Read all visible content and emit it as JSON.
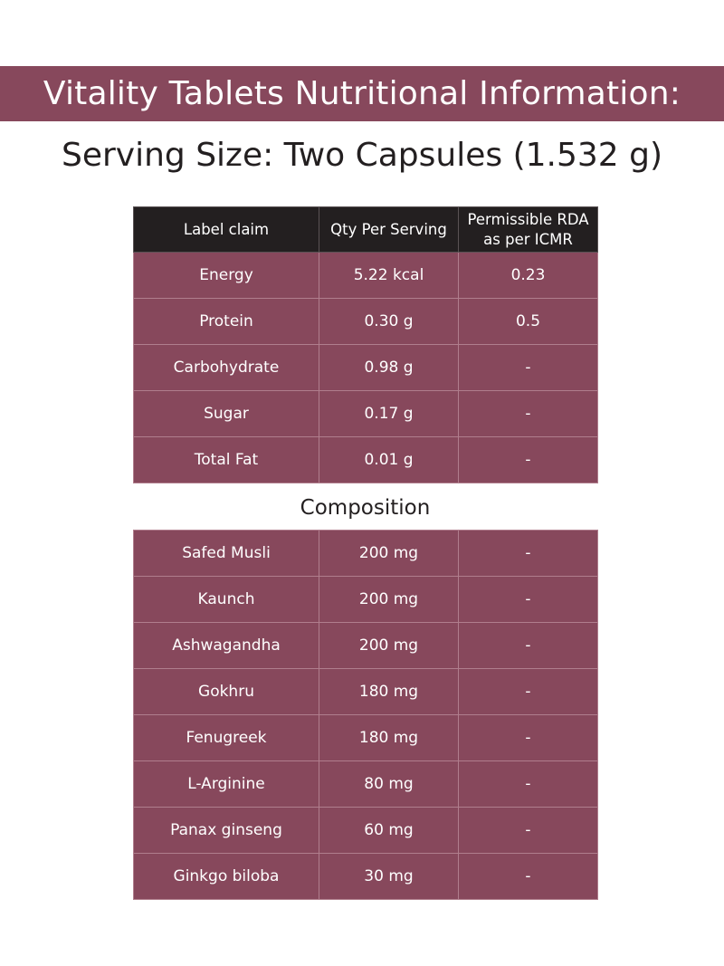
{
  "header": {
    "title": "Vitality Tablets Nutritional Information:",
    "serving_size": "Serving Size: Two Capsules (1.532 g)"
  },
  "nutrition_table": {
    "columns": [
      "Label claim",
      "Qty Per Serving",
      "Permissible RDA as per ICMR"
    ],
    "rows": [
      {
        "claim": "Energy",
        "qty": "5.22 kcal",
        "rda": "0.23"
      },
      {
        "claim": "Protein",
        "qty": "0.30 g",
        "rda": "0.5"
      },
      {
        "claim": "Carbohydrate",
        "qty": "0.98 g",
        "rda": "-"
      },
      {
        "claim": "Sugar",
        "qty": "0.17 g",
        "rda": "-"
      },
      {
        "claim": "Total Fat",
        "qty": "0.01 g",
        "rda": "-"
      }
    ]
  },
  "composition": {
    "title": "Composition",
    "rows": [
      {
        "claim": "Safed Musli",
        "qty": "200 mg",
        "rda": "-"
      },
      {
        "claim": "Kaunch",
        "qty": "200 mg",
        "rda": "-"
      },
      {
        "claim": "Ashwagandha",
        "qty": "200 mg",
        "rda": "-"
      },
      {
        "claim": "Gokhru",
        "qty": "180 mg",
        "rda": "-"
      },
      {
        "claim": "Fenugreek",
        "qty": "180 mg",
        "rda": "-"
      },
      {
        "claim": "L-Arginine",
        "qty": "80 mg",
        "rda": "-"
      },
      {
        "claim": "Panax ginseng",
        "qty": "60 mg",
        "rda": "-"
      },
      {
        "claim": "Ginkgo biloba",
        "qty": "30 mg",
        "rda": "-"
      }
    ]
  },
  "colors": {
    "banner": "#87485c",
    "row": "#87485c",
    "header_row": "#231f20",
    "text": "#ffffff"
  }
}
